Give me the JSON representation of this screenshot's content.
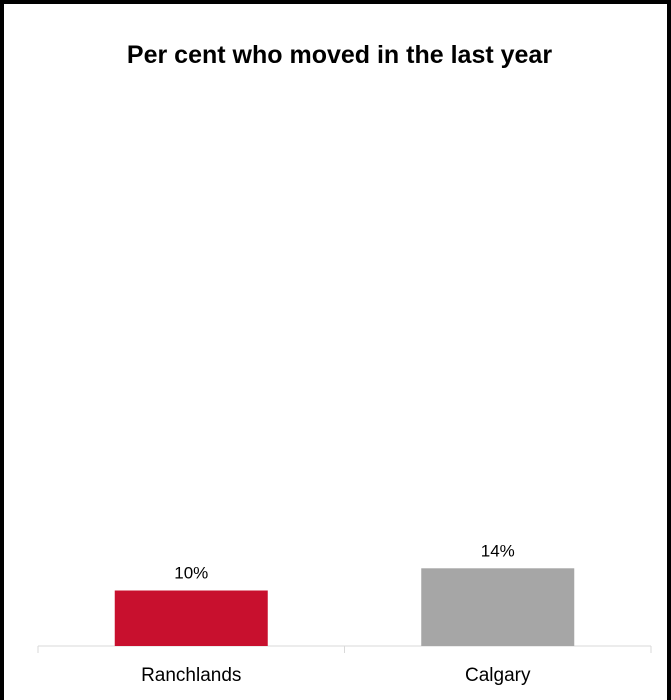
{
  "chart_data": {
    "type": "bar",
    "title": "Per cent who moved in the last year",
    "categories": [
      "Ranchlands",
      "Calgary"
    ],
    "values": [
      10,
      14
    ],
    "data_labels": [
      "10%",
      "14%"
    ],
    "colors": [
      "#c8102e",
      "#a6a6a6"
    ],
    "ylim": [
      0,
      100
    ],
    "grid": false,
    "legend": "none",
    "xlabel": "",
    "ylabel": ""
  }
}
